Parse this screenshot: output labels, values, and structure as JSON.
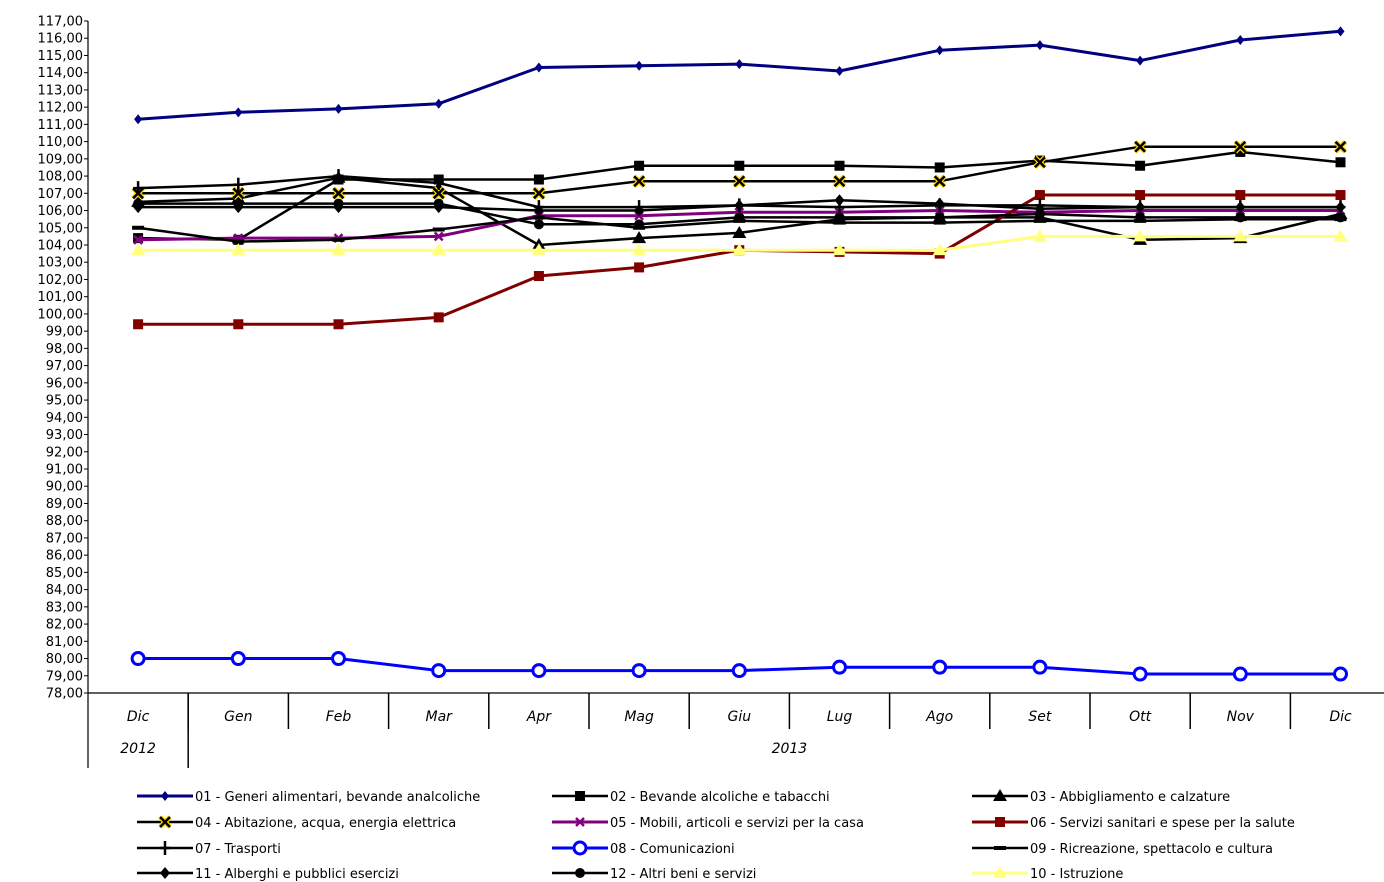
{
  "chart_data": {
    "type": "line",
    "title": "",
    "xlabel": "",
    "ylabel": "",
    "categories": [
      "Dic",
      "Gen",
      "Feb",
      "Mar",
      "Apr",
      "Mag",
      "Giu",
      "Lug",
      "Ago",
      "Set",
      "Ott",
      "Nov",
      "Dic"
    ],
    "year_groups": [
      {
        "label": "2012",
        "start": 0,
        "end": 0
      },
      {
        "label": "2013",
        "start": 1,
        "end": 12
      }
    ],
    "ylim": [
      78,
      117
    ],
    "ytick_step": 1,
    "ytick_format": "comma-2-decimals",
    "grid": false,
    "legend_position": "bottom",
    "series": [
      {
        "name": "01 - Generi alimentari, bevande analcoliche",
        "color": "#000080",
        "marker": "diamond",
        "values": [
          111.3,
          111.7,
          111.9,
          112.2,
          114.3,
          114.4,
          114.5,
          114.1,
          115.3,
          115.6,
          114.7,
          115.9,
          116.4
        ]
      },
      {
        "name": "02 - Bevande alcoliche e tabacchi",
        "color": "#000000",
        "marker": "square",
        "values": [
          104.4,
          104.3,
          107.8,
          107.8,
          107.8,
          108.6,
          108.6,
          108.6,
          108.5,
          108.9,
          108.6,
          109.4,
          108.8
        ]
      },
      {
        "name": "03 - Abbigliamento e calzature",
        "color": "#000000",
        "marker": "triangle",
        "values": [
          106.5,
          106.7,
          107.9,
          107.3,
          104.0,
          104.4,
          104.7,
          105.5,
          105.6,
          105.6,
          104.3,
          104.4,
          105.8
        ]
      },
      {
        "name": "04 - Abitazione, acqua, energia elettrica",
        "color": "#000000",
        "marker": "x-gold",
        "values": [
          107.0,
          107.0,
          107.0,
          107.0,
          107.0,
          107.7,
          107.7,
          107.7,
          107.7,
          108.8,
          109.7,
          109.7,
          109.7
        ]
      },
      {
        "name": "05 - Mobili, articoli e servizi per la casa",
        "color": "#800080",
        "marker": "star",
        "values": [
          104.3,
          104.4,
          104.4,
          104.5,
          105.7,
          105.7,
          105.9,
          105.9,
          106.0,
          105.9,
          106.0,
          106.0,
          106.0
        ]
      },
      {
        "name": "06 - Servizi sanitari e spese per la salute",
        "color": "#800000",
        "marker": "square",
        "values": [
          99.4,
          99.4,
          99.4,
          99.8,
          102.2,
          102.7,
          103.7,
          103.6,
          103.5,
          106.9,
          106.9,
          106.9,
          106.9
        ]
      },
      {
        "name": "07 - Trasporti",
        "color": "#000000",
        "marker": "plus",
        "values": [
          107.3,
          107.5,
          108.0,
          107.6,
          106.2,
          106.2,
          106.3,
          106.2,
          106.3,
          106.3,
          106.2,
          106.2,
          106.2
        ]
      },
      {
        "name": "08 - Comunicazioni",
        "color": "#0000FF",
        "marker": "circle",
        "values": [
          80.0,
          80.0,
          80.0,
          79.3,
          79.3,
          79.3,
          79.3,
          79.5,
          79.5,
          79.5,
          79.1,
          79.1,
          79.1
        ]
      },
      {
        "name": "09 - Ricreazione, spettacolo e cultura",
        "color": "#000000",
        "marker": "dash",
        "values": [
          105.0,
          104.2,
          104.3,
          104.9,
          105.6,
          105.0,
          105.4,
          105.3,
          105.3,
          105.4,
          105.4,
          105.5,
          105.5
        ]
      },
      {
        "name": "11 - Alberghi e pubblici esercizi",
        "color": "#000000",
        "marker": "diamond-bold",
        "values": [
          106.2,
          106.2,
          106.2,
          106.2,
          106.0,
          106.0,
          106.3,
          106.6,
          106.4,
          106.1,
          106.2,
          106.2,
          106.2
        ]
      },
      {
        "name": "12 - Altri beni e servizi",
        "color": "#000000",
        "marker": "circle-bold",
        "values": [
          106.4,
          106.4,
          106.4,
          106.4,
          105.2,
          105.2,
          105.6,
          105.6,
          105.6,
          105.8,
          105.6,
          105.6,
          105.6
        ]
      },
      {
        "name": "10 - Istruzione",
        "color": "#FFFF80",
        "marker": "triangle",
        "values": [
          103.7,
          103.7,
          103.7,
          103.7,
          103.7,
          103.7,
          103.7,
          103.7,
          103.7,
          104.5,
          104.5,
          104.5,
          104.5
        ]
      }
    ]
  }
}
